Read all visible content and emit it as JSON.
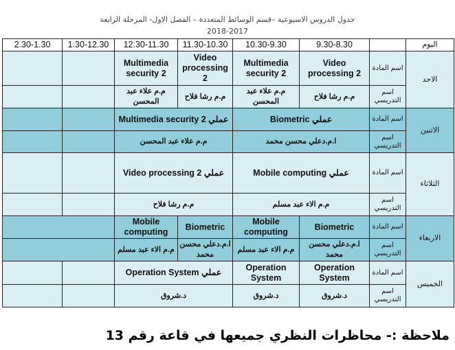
{
  "title": "جدول الدروس الاسبوعية –قسم الوسائط المتعددة – الفصل الاول- المرحلة الرابعة",
  "year": "2018-2017",
  "header": {
    "day": "اليوم",
    "label": "",
    "times": [
      "9.30-8.30",
      "10.30-9.30",
      "11.30-10.30",
      "12.30-11.30",
      "1.30-12.30",
      "2.30-1.30"
    ]
  },
  "labels": {
    "subject": "اسم المادة",
    "teacher": "اسم التدريسي"
  },
  "days": [
    {
      "name": "الاحد",
      "subjects": [
        "Video processing 2",
        "Multimedia security 2",
        "Video processing 2",
        "Multimedia security 2",
        "",
        ""
      ],
      "teachers": [
        "م.م رشا فلاح",
        "م.م علاء عبد المحسن",
        "م.م رشا فلاح",
        "م.م علاء عبد المحسن",
        "",
        ""
      ]
    },
    {
      "name": "الاثنين",
      "subjects": [
        "عملي Biometric",
        "عملي Multimedia security 2",
        "",
        ""
      ],
      "teachers": [
        "ا.م.دعلي محسن محمد",
        "م.م علاء عبد المحسن",
        "",
        ""
      ]
    },
    {
      "name": "الثلاثاء",
      "subjects": [
        "عملي Mobile computing",
        "عملي Video processing 2",
        "",
        ""
      ],
      "teachers": [
        "م.م الاء عبد مسلم",
        "م.م رشا فلاح",
        "",
        ""
      ]
    },
    {
      "name": "الاربعاء",
      "subjects": [
        "Biometric",
        "Mobile computing",
        "Biometric",
        "Mobile computing",
        ""
      ],
      "teachers": [
        "ا.م.دعلي محسن محمد",
        "م.م الاء عبد مسلم",
        "ا.م.دعلي محسن محمد",
        "م.م الاء عبد مسلم",
        ""
      ]
    },
    {
      "name": "الخميس",
      "subjects": [
        "Operation System",
        "Operation System",
        "عملي Operation System",
        "",
        ""
      ],
      "teachers": [
        "د.شروق",
        "د.شروق",
        "د.شروق",
        "",
        ""
      ]
    }
  ],
  "note": "ملاحظة :- محاظرات النظري جميعها في قاعة رقم 13",
  "colors": {
    "light_row": "#dbeef4",
    "dark_row": "#92cddc"
  }
}
